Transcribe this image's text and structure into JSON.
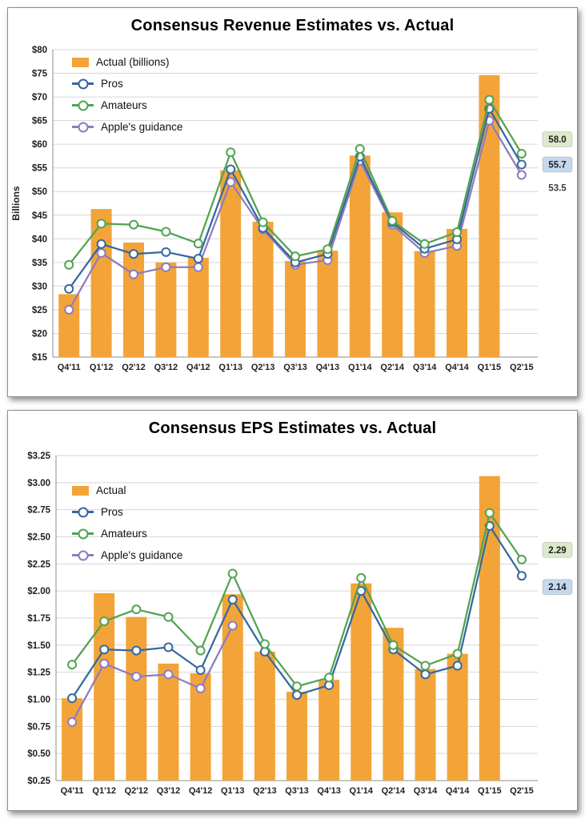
{
  "colors": {
    "grid": "#d6d6d6",
    "axis": "#8c8c8c",
    "bar": "#F2A438",
    "pros": "#35689F",
    "amateurs": "#52A352",
    "guidance": "#8F7BC0",
    "annotation_green_bg": "#DCE9CA",
    "annotation_blue_bg": "#C5D9EE"
  },
  "chart_data": [
    {
      "type": "bar+line",
      "title": "Consensus Revenue Estimates vs. Actual",
      "y_axis_title": "Billions",
      "xlabel": "",
      "ylabel": "Billions",
      "ylim": [
        15,
        80
      ],
      "grid": true,
      "legend_position": "top-left-inside",
      "categories": [
        "Q4'11",
        "Q1'12",
        "Q2'12",
        "Q3'12",
        "Q4'12",
        "Q1'13",
        "Q2'13",
        "Q3'13",
        "Q4'13",
        "Q1'14",
        "Q2'14",
        "Q3'14",
        "Q4'14",
        "Q1'15",
        "Q2'15"
      ],
      "yticks": {
        "values": [
          80,
          75,
          70,
          65,
          60,
          55,
          50,
          45,
          40,
          35,
          30,
          25,
          20,
          15
        ],
        "labels": [
          "$80",
          "$75",
          "$70",
          "$65",
          "$60",
          "$55",
          "$50",
          "$45",
          "$40",
          "$35",
          "$30",
          "$25",
          "$20",
          "$15"
        ]
      },
      "bar_series": {
        "name": "Actual (billions)",
        "color": "#F2A438",
        "values": [
          28.3,
          46.3,
          39.2,
          35.0,
          36.0,
          54.5,
          43.6,
          35.3,
          37.5,
          57.6,
          45.6,
          37.4,
          42.1,
          74.6,
          null
        ]
      },
      "line_series": [
        {
          "name": "Pros",
          "color": "#35689F",
          "values": [
            29.4,
            38.9,
            36.8,
            37.2,
            35.8,
            54.7,
            42.3,
            35.0,
            36.8,
            57.4,
            43.5,
            37.9,
            39.9,
            67.5,
            55.7
          ]
        },
        {
          "name": "Amateurs",
          "color": "#52A352",
          "values": [
            34.5,
            43.2,
            43.0,
            41.5,
            39.0,
            58.3,
            43.5,
            36.3,
            37.8,
            59.0,
            43.8,
            38.9,
            41.4,
            69.4,
            58.0
          ]
        },
        {
          "name": "Apple's guidance",
          "color": "#8F7BC0",
          "values": [
            25.0,
            37.0,
            32.5,
            34.0,
            34.0,
            52.0,
            42.0,
            34.5,
            35.5,
            56.5,
            43.0,
            37.0,
            38.5,
            65.0,
            53.5
          ]
        }
      ],
      "legend": [
        {
          "label": "Actual (billions)",
          "type": "bar",
          "color": "#F2A438"
        },
        {
          "label": "Pros",
          "type": "line",
          "color": "#35689F"
        },
        {
          "label": "Amateurs",
          "type": "line",
          "color": "#52A352"
        },
        {
          "label": "Apple's guidance",
          "type": "line",
          "color": "#8F7BC0"
        }
      ],
      "annotations": [
        {
          "text": "58.0",
          "value": 58.0,
          "bg": "#DCE9CA",
          "color": "#1f1f1f"
        },
        {
          "text": "55.7",
          "value": 55.7,
          "bg": "#C5D9EE",
          "color": "#1f1f1f"
        },
        {
          "text": "53.5",
          "value": 53.5,
          "bg": "",
          "color": "#3f3f3f"
        }
      ]
    },
    {
      "type": "bar+line",
      "title": "Consensus EPS Estimates vs. Actual",
      "y_axis_title": "",
      "xlabel": "",
      "ylabel": "",
      "ylim": [
        0.25,
        3.25
      ],
      "grid": true,
      "legend_position": "top-left-inside",
      "categories": [
        "Q4'11",
        "Q1'12",
        "Q2'12",
        "Q3'12",
        "Q4'12",
        "Q1'13",
        "Q2'13",
        "Q3'13",
        "Q4'13",
        "Q1'14",
        "Q2'14",
        "Q3'14",
        "Q4'14",
        "Q1'15",
        "Q2'15"
      ],
      "yticks": {
        "values": [
          3.25,
          3.0,
          2.75,
          2.5,
          2.25,
          2.0,
          1.75,
          1.5,
          1.25,
          1.0,
          0.75,
          0.5,
          0.25
        ],
        "labels": [
          "$3.25",
          "$3.00",
          "$2.75",
          "$2.50",
          "$2.25",
          "$2.00",
          "$1.75",
          "$1.50",
          "$1.25",
          "$1.00",
          "$0.75",
          "$0.50",
          "$0.25"
        ]
      },
      "bar_series": {
        "name": "Actual",
        "color": "#F2A438",
        "values": [
          1.01,
          1.98,
          1.76,
          1.33,
          1.24,
          1.97,
          1.44,
          1.07,
          1.18,
          2.07,
          1.66,
          1.28,
          1.42,
          3.06,
          null
        ]
      },
      "line_series": [
        {
          "name": "Pros",
          "color": "#35689F",
          "values": [
            1.01,
            1.46,
            1.45,
            1.48,
            1.27,
            1.92,
            1.44,
            1.04,
            1.13,
            2.0,
            1.46,
            1.23,
            1.31,
            2.6,
            2.14
          ]
        },
        {
          "name": "Amateurs",
          "color": "#52A352",
          "values": [
            1.32,
            1.72,
            1.83,
            1.76,
            1.45,
            2.16,
            1.51,
            1.12,
            1.2,
            2.12,
            1.5,
            1.31,
            1.42,
            2.72,
            2.29
          ]
        },
        {
          "name": "Apple's guidance",
          "color": "#8F7BC0",
          "values": [
            0.79,
            1.33,
            1.21,
            1.23,
            1.1,
            1.68,
            null,
            null,
            null,
            null,
            null,
            null,
            null,
            null,
            null
          ]
        }
      ],
      "legend": [
        {
          "label": "Actual",
          "type": "bar",
          "color": "#F2A438"
        },
        {
          "label": "Pros",
          "type": "line",
          "color": "#35689F"
        },
        {
          "label": "Amateurs",
          "type": "line",
          "color": "#52A352"
        },
        {
          "label": "Apple's guidance",
          "type": "line",
          "color": "#8F7BC0"
        }
      ],
      "annotations": [
        {
          "text": "2.29",
          "value": 2.29,
          "bg": "#DCE9CA",
          "color": "#1f1f1f"
        },
        {
          "text": "2.14",
          "value": 2.14,
          "bg": "#C5D9EE",
          "color": "#1f1f1f"
        }
      ]
    }
  ]
}
